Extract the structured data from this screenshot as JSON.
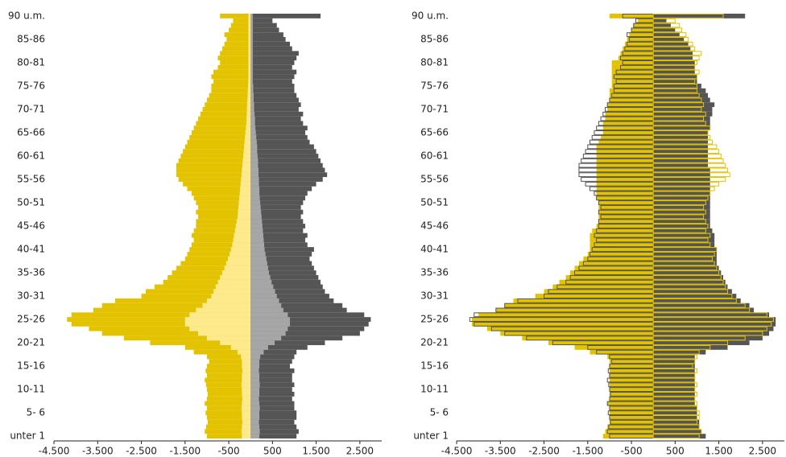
{
  "chart_data": [
    {
      "type": "bar",
      "orientation": "horizontal",
      "categories": [
        "unter 1",
        null,
        null,
        null,
        null,
        "5- 6",
        null,
        null,
        null,
        null,
        "10-11",
        null,
        null,
        null,
        null,
        "15-16",
        null,
        null,
        null,
        null,
        "20-21",
        null,
        null,
        null,
        null,
        "25-26",
        null,
        null,
        null,
        null,
        "30-31",
        null,
        null,
        null,
        null,
        "35-36",
        null,
        null,
        null,
        null,
        "40-41",
        null,
        null,
        null,
        null,
        "45-46",
        null,
        null,
        null,
        null,
        "50-51",
        null,
        null,
        null,
        null,
        "55-56",
        null,
        null,
        null,
        null,
        "60-61",
        null,
        null,
        null,
        null,
        "65-66",
        null,
        null,
        null,
        null,
        "70-71",
        null,
        null,
        null,
        null,
        "75-76",
        null,
        null,
        null,
        null,
        "80-81",
        null,
        null,
        null,
        null,
        "85-86",
        null,
        null,
        null,
        null,
        "90 u.m."
      ],
      "xlim": [
        -4500,
        3000
      ],
      "xticks": [
        {
          "value": -4500,
          "label": "-4.500"
        },
        {
          "value": -3500,
          "label": "-3.500"
        },
        {
          "value": -2500,
          "label": "-2.500"
        },
        {
          "value": -1500,
          "label": "-1.500"
        },
        -500,
        500,
        {
          "value": 1500,
          "label": "1.500"
        },
        {
          "value": 2500,
          "label": "2.500"
        }
      ],
      "series": [
        {
          "color": "#e3c200",
          "values": [
            -1000,
            -1050,
            -1020,
            -980,
            -1000,
            -1030,
            -1000,
            -1050,
            -1000,
            -980,
            -1000,
            -1020,
            -1050,
            -1000,
            -1030,
            -1000,
            -950,
            -1000,
            -1300,
            -1500,
            -2300,
            -2900,
            -3400,
            -3700,
            -4100,
            -4200,
            -4100,
            -3600,
            -3400,
            -3100,
            -2500,
            -2400,
            -2200,
            -2000,
            -1900,
            -1800,
            -1700,
            -1600,
            -1500,
            -1450,
            -1400,
            -1350,
            -1300,
            -1350,
            -1300,
            -1250,
            -1250,
            -1200,
            -1250,
            -1200,
            -1250,
            -1300,
            -1350,
            -1450,
            -1550,
            -1650,
            -1700,
            -1700,
            -1700,
            -1650,
            -1600,
            -1550,
            -1500,
            -1450,
            -1400,
            -1350,
            -1300,
            -1250,
            -1200,
            -1150,
            -1100,
            -1050,
            -1000,
            -950,
            -900,
            -900,
            -850,
            -900,
            -850,
            -750,
            -700,
            -750,
            -700,
            -650,
            -600,
            -550,
            -600,
            -500,
            -450,
            -400,
            -700
          ]
        },
        {
          "color": "#555555",
          "values": [
            1050,
            1100,
            1050,
            1000,
            1050,
            1050,
            1000,
            1000,
            950,
            1000,
            950,
            1000,
            950,
            950,
            1000,
            900,
            950,
            1000,
            1050,
            1300,
            1700,
            2100,
            2500,
            2600,
            2700,
            2750,
            2600,
            2200,
            2100,
            1900,
            1800,
            1700,
            1650,
            1600,
            1550,
            1500,
            1450,
            1400,
            1350,
            1400,
            1450,
            1300,
            1250,
            1300,
            1200,
            1250,
            1200,
            1150,
            1200,
            1150,
            1200,
            1250,
            1300,
            1400,
            1500,
            1650,
            1750,
            1700,
            1650,
            1600,
            1550,
            1500,
            1450,
            1350,
            1300,
            1250,
            1300,
            1200,
            1150,
            1200,
            1100,
            1150,
            1100,
            1050,
            1000,
            1000,
            950,
            1000,
            1050,
            950,
            1000,
            1050,
            1100,
            950,
            900,
            800,
            750,
            650,
            600,
            500,
            1600
          ]
        },
        {
          "color": "#fdea8c",
          "values": [
            -200,
            -210,
            -200,
            -190,
            -200,
            -200,
            -210,
            -200,
            -190,
            -200,
            -200,
            -210,
            -200,
            -200,
            -190,
            -200,
            -200,
            -220,
            -300,
            -450,
            -700,
            -1000,
            -1200,
            -1400,
            -1500,
            -1500,
            -1400,
            -1250,
            -1100,
            -1000,
            -900,
            -850,
            -800,
            -750,
            -700,
            -650,
            -600,
            -560,
            -520,
            -480,
            -450,
            -420,
            -400,
            -380,
            -360,
            -340,
            -320,
            -300,
            -290,
            -280,
            -270,
            -260,
            -250,
            -240,
            -230,
            -220,
            -210,
            -200,
            -190,
            -180,
            -170,
            -160,
            -150,
            -140,
            -130,
            -120,
            -110,
            -100,
            -95,
            -90,
            -85,
            -80,
            -75,
            -70,
            -65,
            -60,
            -55,
            -50,
            -50,
            -50,
            -50,
            -50,
            -50,
            -50,
            -50,
            -50,
            -50,
            -50,
            -50,
            -50,
            -50
          ]
        },
        {
          "color": "#a6a6a6",
          "values": [
            200,
            210,
            200,
            190,
            200,
            200,
            210,
            200,
            190,
            200,
            200,
            210,
            200,
            200,
            190,
            200,
            200,
            220,
            300,
            400,
            550,
            700,
            800,
            850,
            900,
            900,
            850,
            750,
            700,
            650,
            600,
            560,
            520,
            480,
            450,
            420,
            400,
            380,
            360,
            340,
            320,
            310,
            300,
            290,
            280,
            270,
            260,
            250,
            240,
            230,
            220,
            210,
            200,
            200,
            190,
            190,
            180,
            180,
            170,
            170,
            160,
            150,
            150,
            140,
            130,
            120,
            110,
            100,
            100,
            90,
            80,
            80,
            70,
            70,
            60,
            60,
            50,
            50,
            50,
            50,
            50,
            50,
            50,
            50,
            50,
            50,
            50,
            50,
            50,
            50,
            50
          ]
        }
      ]
    },
    {
      "type": "bar",
      "orientation": "horizontal",
      "categories": [
        "unter 1",
        null,
        null,
        null,
        null,
        "5- 6",
        null,
        null,
        null,
        null,
        "10-11",
        null,
        null,
        null,
        null,
        "15-16",
        null,
        null,
        null,
        null,
        "20-21",
        null,
        null,
        null,
        null,
        "25-26",
        null,
        null,
        null,
        null,
        "30-31",
        null,
        null,
        null,
        null,
        "35-36",
        null,
        null,
        null,
        null,
        "40-41",
        null,
        null,
        null,
        null,
        "45-46",
        null,
        null,
        null,
        null,
        "50-51",
        null,
        null,
        null,
        null,
        "55-56",
        null,
        null,
        null,
        null,
        "60-61",
        null,
        null,
        null,
        null,
        "65-66",
        null,
        null,
        null,
        null,
        "70-71",
        null,
        null,
        null,
        null,
        "75-76",
        null,
        null,
        null,
        null,
        "80-81",
        null,
        null,
        null,
        null,
        "85-86",
        null,
        null,
        null,
        null,
        "90 u.m."
      ],
      "xlim": [
        -4500,
        3000
      ],
      "xticks": [
        {
          "value": -4500,
          "label": "-4.500"
        },
        {
          "value": -3500,
          "label": "-3.500"
        },
        {
          "value": -2500,
          "label": "-2.500"
        },
        {
          "value": -1500,
          "label": "-1.500"
        },
        -500,
        500,
        {
          "value": 1500,
          "label": "1.500"
        },
        {
          "value": 2500,
          "label": "2.500"
        }
      ],
      "series": [
        {
          "color": "#e3c200",
          "values": [
            -1150,
            -1100,
            -1050,
            -1000,
            -1000,
            -1000,
            -1000,
            -1050,
            -1000,
            -1000,
            -1000,
            -1000,
            -1000,
            -1000,
            -1000,
            -1000,
            -1000,
            -1050,
            -1450,
            -1800,
            -2400,
            -3000,
            -3500,
            -3800,
            -4150,
            -4150,
            -4000,
            -3600,
            -3400,
            -3200,
            -2700,
            -2500,
            -2300,
            -2150,
            -2000,
            -1900,
            -1800,
            -1700,
            -1600,
            -1500,
            -1450,
            -1450,
            -1450,
            -1450,
            -1400,
            -1300,
            -1250,
            -1250,
            -1250,
            -1250,
            -1250,
            -1300,
            -1300,
            -1300,
            -1300,
            -1300,
            -1300,
            -1300,
            -1300,
            -1300,
            -1300,
            -1300,
            -1300,
            -1250,
            -1200,
            -1150,
            -1150,
            -1150,
            -1100,
            -1100,
            -1050,
            -1050,
            -1000,
            -1000,
            -1000,
            -950,
            -950,
            -950,
            -950,
            -950,
            -950,
            -800,
            -750,
            -700,
            -650,
            -600,
            -550,
            -500,
            -450,
            -350,
            -1000
          ]
        },
        {
          "color": "#555555",
          "values": [
            1200,
            1100,
            1050,
            1050,
            1000,
            1000,
            1000,
            950,
            950,
            950,
            950,
            950,
            950,
            950,
            950,
            950,
            950,
            950,
            1200,
            1700,
            2200,
            2500,
            2650,
            2750,
            2800,
            2800,
            2650,
            2300,
            2200,
            2000,
            1900,
            1800,
            1700,
            1650,
            1600,
            1550,
            1500,
            1450,
            1450,
            1450,
            1450,
            1400,
            1400,
            1400,
            1350,
            1300,
            1300,
            1300,
            1300,
            1300,
            1300,
            1300,
            1300,
            1300,
            1300,
            1300,
            1300,
            1300,
            1250,
            1250,
            1250,
            1250,
            1250,
            1250,
            1250,
            1250,
            1300,
            1300,
            1300,
            1350,
            1350,
            1400,
            1300,
            1250,
            1200,
            1100,
            1000,
            1000,
            950,
            950,
            950,
            900,
            900,
            850,
            800,
            700,
            600,
            500,
            400,
            300,
            2100
          ]
        },
        {
          "color": "#555555",
          "outline": true,
          "values": [
            -1000,
            -1050,
            -1020,
            -980,
            -1000,
            -1030,
            -1000,
            -1050,
            -1000,
            -980,
            -1000,
            -1020,
            -1050,
            -1000,
            -1030,
            -1000,
            -950,
            -1000,
            -1300,
            -1500,
            -2300,
            -2900,
            -3400,
            -3700,
            -4100,
            -4200,
            -4100,
            -3600,
            -3400,
            -3100,
            -2500,
            -2400,
            -2200,
            -2000,
            -1900,
            -1800,
            -1700,
            -1600,
            -1500,
            -1450,
            -1400,
            -1350,
            -1300,
            -1350,
            -1300,
            -1250,
            -1250,
            -1200,
            -1250,
            -1200,
            -1250,
            -1300,
            -1350,
            -1450,
            -1550,
            -1650,
            -1700,
            -1700,
            -1700,
            -1650,
            -1600,
            -1550,
            -1500,
            -1450,
            -1400,
            -1350,
            -1300,
            -1250,
            -1200,
            -1150,
            -1100,
            -1050,
            -1000,
            -950,
            -900,
            -900,
            -850,
            -900,
            -850,
            -750,
            -700,
            -750,
            -700,
            -650,
            -600,
            -550,
            -600,
            -500,
            -450,
            -400,
            -700
          ]
        },
        {
          "color": "#e3c200",
          "outline": true,
          "values": [
            1050,
            1100,
            1050,
            1000,
            1050,
            1050,
            1000,
            1000,
            950,
            1000,
            950,
            1000,
            950,
            950,
            1000,
            900,
            950,
            1000,
            1050,
            1300,
            1700,
            2100,
            2500,
            2600,
            2700,
            2750,
            2600,
            2200,
            2100,
            1900,
            1800,
            1700,
            1650,
            1600,
            1550,
            1500,
            1450,
            1400,
            1350,
            1400,
            1450,
            1300,
            1250,
            1300,
            1200,
            1250,
            1200,
            1150,
            1200,
            1150,
            1200,
            1250,
            1300,
            1400,
            1500,
            1650,
            1750,
            1700,
            1650,
            1600,
            1550,
            1500,
            1450,
            1350,
            1300,
            1250,
            1300,
            1200,
            1150,
            1200,
            1100,
            1150,
            1100,
            1050,
            1000,
            1000,
            950,
            1000,
            1050,
            950,
            1000,
            1050,
            1100,
            950,
            900,
            800,
            750,
            650,
            600,
            500,
            1600
          ]
        }
      ]
    }
  ]
}
